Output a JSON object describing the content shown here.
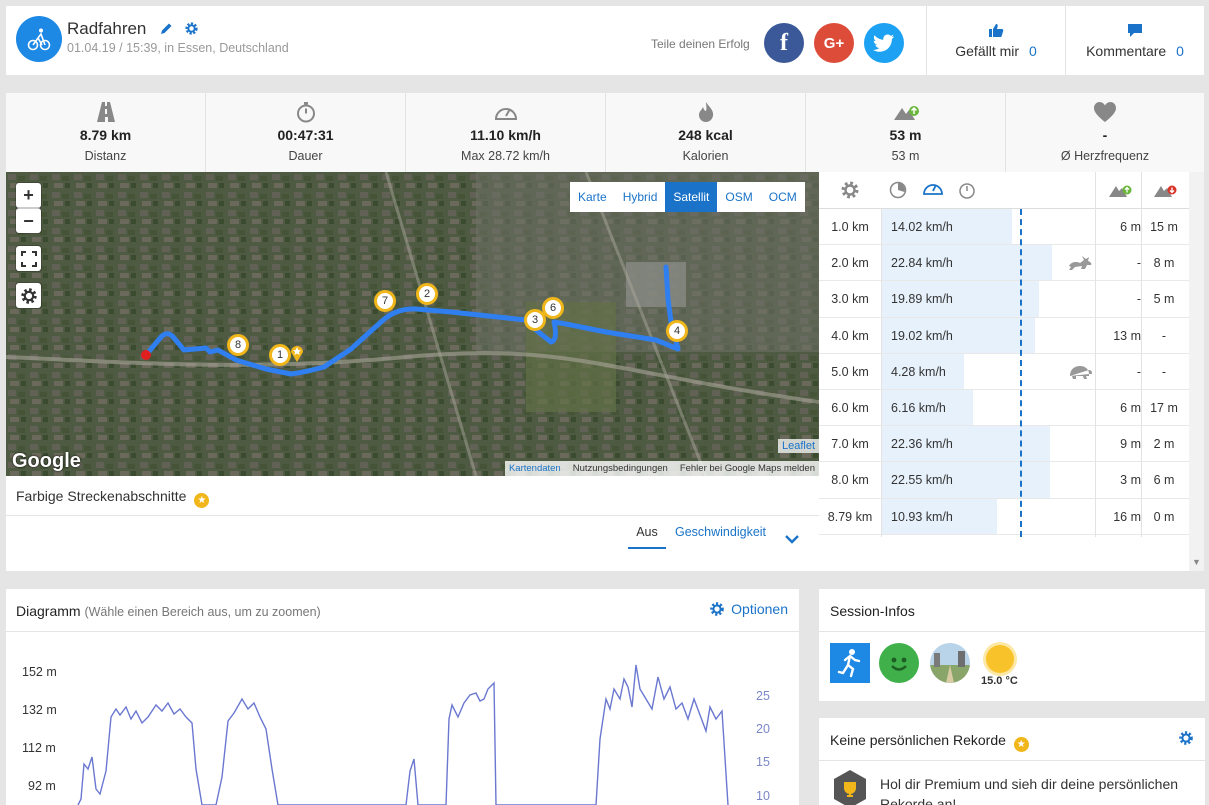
{
  "header": {
    "title": "Radfahren",
    "subtitle": "01.04.19 / 15:39, in Essen, Deutschland",
    "share_label": "Teile deinen Erfolg",
    "social": {
      "facebook": "f",
      "google": "G+",
      "twitter": "twitter-icon"
    },
    "like_label": "Gefällt mir",
    "like_count": "0",
    "comments_label": "Kommentare",
    "comments_count": "0"
  },
  "stats": [
    {
      "icon": "road-icon",
      "value": "8.79 km",
      "label": "Distanz"
    },
    {
      "icon": "stopwatch-icon",
      "value": "00:47:31",
      "label": "Dauer"
    },
    {
      "icon": "speedometer-icon",
      "value": "11.10 km/h",
      "label": "Max 28.72 km/h"
    },
    {
      "icon": "flame-icon",
      "value": "248 kcal",
      "label": "Kalorien"
    },
    {
      "icon": "elevation-up-icon",
      "value": "53 m",
      "label": "53 m"
    },
    {
      "icon": "heart-icon",
      "value": "-",
      "label": "Ø Herzfrequenz"
    }
  ],
  "map": {
    "zoom_in": "+",
    "zoom_out": "−",
    "layers": [
      "Karte",
      "Hybrid",
      "Satellit",
      "OSM",
      "OCM"
    ],
    "active_layer": "Satellit",
    "markers": [
      "1",
      "2",
      "3",
      "4",
      "6",
      "7",
      "8"
    ],
    "google_logo": "Google",
    "leaflet": "Leaflet",
    "attribution": [
      "Kartendaten",
      "Nutzungsbedingungen",
      "Fehler bei Google Maps melden"
    ]
  },
  "segments": {
    "title": "Farbige Streckenabschnitte",
    "option_off": "Aus",
    "option_speed": "Geschwindigkeit"
  },
  "splits": {
    "rows": [
      {
        "km": "1.0 km",
        "speed": "14.02 km/h",
        "fill": 0.61,
        "badge": "",
        "up": "6 m",
        "down": "15 m"
      },
      {
        "km": "2.0 km",
        "speed": "22.84 km/h",
        "fill": 0.8,
        "badge": "rabbit-icon",
        "up": "-",
        "down": "8 m"
      },
      {
        "km": "3.0 km",
        "speed": "19.89 km/h",
        "fill": 0.74,
        "badge": "",
        "up": "-",
        "down": "5 m"
      },
      {
        "km": "4.0 km",
        "speed": "19.02 km/h",
        "fill": 0.72,
        "badge": "",
        "up": "13 m",
        "down": "-"
      },
      {
        "km": "5.0 km",
        "speed": "4.28 km/h",
        "fill": 0.39,
        "badge": "turtle-icon",
        "up": "-",
        "down": "-"
      },
      {
        "km": "6.0 km",
        "speed": "6.16 km/h",
        "fill": 0.43,
        "badge": "",
        "up": "6 m",
        "down": "17 m"
      },
      {
        "km": "7.0 km",
        "speed": "22.36 km/h",
        "fill": 0.79,
        "badge": "",
        "up": "9 m",
        "down": "2 m"
      },
      {
        "km": "8.0 km",
        "speed": "22.55 km/h",
        "fill": 0.79,
        "badge": "",
        "up": "3 m",
        "down": "6 m"
      },
      {
        "km": "8.79 km",
        "speed": "10.93 km/h",
        "fill": 0.54,
        "badge": "",
        "up": "16 m",
        "down": "0 m"
      }
    ]
  },
  "diagram": {
    "title": "Diagramm",
    "hint": "(Wähle einen Bereich aus, um zu zoomen)",
    "options": "Optionen",
    "y_left": [
      "152 m",
      "132 m",
      "112 m",
      "92 m"
    ],
    "y_right": [
      "25",
      "20",
      "15",
      "10"
    ]
  },
  "session": {
    "title": "Session-Infos",
    "temperature": "15.0 °C"
  },
  "records": {
    "title": "Keine persönlichen Rekorde",
    "text": "Hol dir Premium und sieh dir deine persönlichen Rekorde an!"
  },
  "colors": {
    "accent": "#1a73c8",
    "route": "#2f7ff0",
    "facebook": "#3b5998",
    "google": "#dd4b39",
    "twitter": "#1da1f2",
    "marker": "#f0b61a"
  }
}
